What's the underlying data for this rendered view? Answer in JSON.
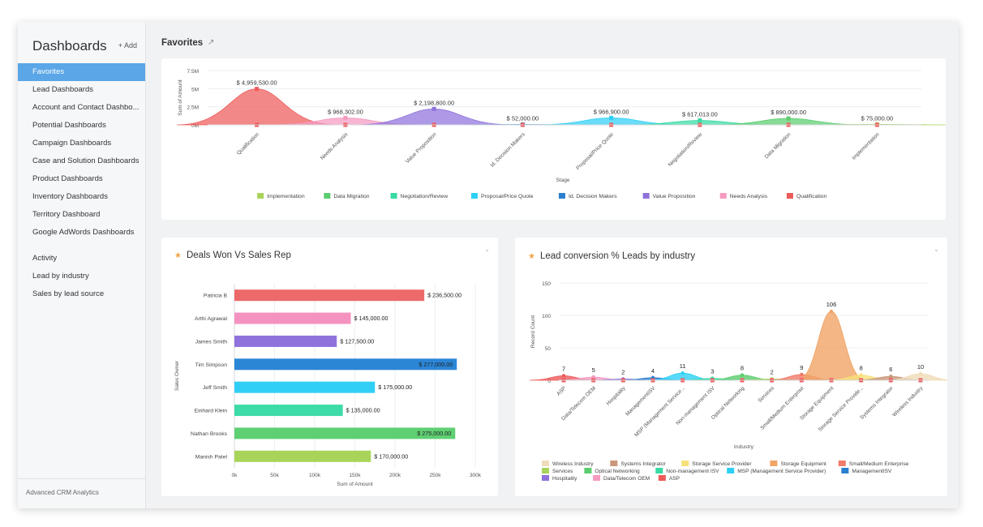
{
  "sidebar": {
    "title": "Dashboards",
    "add_label": "+ Add",
    "items": [
      {
        "label": "Favorites",
        "active": true
      },
      {
        "label": "Lead Dashboards"
      },
      {
        "label": "Account and Contact Dashbo..."
      },
      {
        "label": "Potential Dashboards"
      },
      {
        "label": "Campaign Dashboards"
      },
      {
        "label": "Case and Solution Dashboards"
      },
      {
        "label": "Product Dashboards"
      },
      {
        "label": "Inventory Dashboards"
      },
      {
        "label": "Territory Dashboard"
      },
      {
        "label": "Google AdWords Dashboards"
      }
    ],
    "reports": [
      {
        "label": "Activity"
      },
      {
        "label": "Lead by industry"
      },
      {
        "label": "Sales by lead source"
      }
    ],
    "footer": "Advanced CRM Analytics"
  },
  "main": {
    "favorites_title": "Favorites",
    "external_icon": "external-link-icon"
  },
  "deals_card": {
    "title": "Deals Won Vs Sales Rep",
    "star_icon": "star-icon",
    "menu_icon": "chevron-down-icon"
  },
  "lead_card": {
    "title": "Lead conversion % Leads by industry",
    "star_icon": "star-icon",
    "menu_icon": "chevron-down-icon"
  },
  "chart_data": [
    {
      "type": "area",
      "xlabel": "Stage",
      "ylabel": "Sum of Amount",
      "yticks": [
        "7.5M",
        "5M",
        "2.5M",
        "0M"
      ],
      "ylim": [
        0,
        7500000
      ],
      "categories": [
        "Qualification",
        "Needs Analysis",
        "Value Proposition",
        "Id. Decision Makers",
        "Proposal/Price Quote",
        "Negotiation/Review",
        "Data Migration",
        "Implementation"
      ],
      "values": [
        4959530,
        968302,
        2198800,
        52000,
        966900,
        617013,
        890000,
        75000
      ],
      "data_labels": [
        "$ 4,959,530.00",
        "$ 968,302.00",
        "$ 2,198,800.00",
        "$ 52,000.00",
        "$ 966,900.00",
        "$ 617,013.00",
        "$ 890,000.00",
        "$ 75,000.00"
      ],
      "colors": [
        "#ee5a5a",
        "#f59ac0",
        "#8f72dc",
        "#2b7fcf",
        "#2ecff5",
        "#38dba3",
        "#5acd6e",
        "#a9d45a"
      ],
      "legend": [
        "Implementation",
        "Data Migration",
        "Negotiation/Review",
        "Proposal/Price Quote",
        "Id. Decision Makers",
        "Value Proposition",
        "Needs Analysis",
        "Qualification"
      ],
      "legend_colors": [
        "#a9d45a",
        "#5acd6e",
        "#38dba3",
        "#2ecff5",
        "#2b7fcf",
        "#8f72dc",
        "#f59ac0",
        "#ee5a5a"
      ],
      "legend_position": "bottom",
      "grid": true
    },
    {
      "type": "bar",
      "orientation": "horizontal",
      "xlabel": "Sum of Amount",
      "ylabel": "Sales Owner",
      "xticks": [
        "0k",
        "50k",
        "100k",
        "150k",
        "200k",
        "250k",
        "300k"
      ],
      "xlim": [
        0,
        300000
      ],
      "categories": [
        "Patricia B",
        "Arthi Agrawal",
        "James Smith",
        "Tim Simpson",
        "Jeff Smith",
        "Einhard Klein",
        "Nathan Brooks",
        "Manish Patel"
      ],
      "values": [
        236500,
        145000,
        127500,
        277000,
        175000,
        135000,
        275000,
        170000
      ],
      "data_labels": [
        "$ 236,500.00",
        "$ 145,000.00",
        "$ 127,500.00",
        "$ 277,000.00",
        "$ 175,000.00",
        "$ 135,000.00",
        "$ 275,000.00",
        "$ 170,000.00"
      ],
      "label_inside": [
        false,
        false,
        false,
        true,
        false,
        false,
        true,
        false
      ],
      "colors": [
        "#ee6a6a",
        "#f593c0",
        "#8f72dc",
        "#2b86d6",
        "#31cff5",
        "#3ddba8",
        "#5fcf73",
        "#a9d45a"
      ],
      "grid": true
    },
    {
      "type": "area",
      "xlabel": "Industry",
      "ylabel": "Record Count",
      "yticks": [
        "150",
        "100",
        "50",
        "0"
      ],
      "ylim": [
        0,
        150
      ],
      "categories": [
        "ASP",
        "Data/Telecom OEM",
        "Hospitality",
        "ManagementISV",
        "MSP (Management Service...",
        "Non-management ISV",
        "Optical Networking",
        "Services",
        "Small/Medium Enterprise",
        "Storage Equipment",
        "Storage Service Provide...",
        "Systems Integrator",
        "Wireless Industry"
      ],
      "values": [
        7,
        5,
        2,
        4,
        11,
        3,
        8,
        2,
        9,
        106,
        8,
        6,
        10
      ],
      "colors": [
        "#ee5a5a",
        "#f59ac0",
        "#8f72dc",
        "#2b7fcf",
        "#2ecff5",
        "#38dba3",
        "#5acd6e",
        "#a9d45a",
        "#f07a6a",
        "#f0a465",
        "#f7e07a",
        "#c9977a",
        "#f0dcb8"
      ],
      "legend": [
        "Wireless Industry",
        "Systems Integrator",
        "Storage Service Provider",
        "Storage Equipment",
        "Small/Medium Enterprise",
        "Services",
        "Optical Networking",
        "Non-management ISV",
        "MSP (Management Service Provider)",
        "ManagementISV",
        "Hospitality",
        "Data/Telecom OEM",
        "ASP"
      ],
      "legend_colors": [
        "#f0dcb8",
        "#c9977a",
        "#f7e07a",
        "#f0a465",
        "#f07a6a",
        "#a9d45a",
        "#5acd6e",
        "#38dba3",
        "#2ecff5",
        "#2b7fcf",
        "#8f72dc",
        "#f59ac0",
        "#ee5a5a"
      ],
      "legend_position": "bottom",
      "grid": true
    }
  ]
}
